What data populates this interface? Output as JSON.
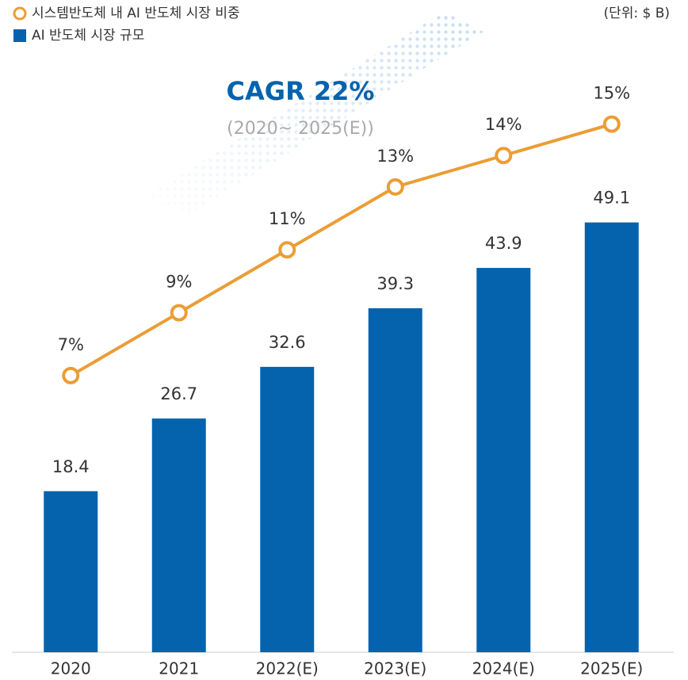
{
  "chart_data": {
    "type": "bar-line",
    "unit_label": "(단위: $ B)",
    "annotation": "CAGR 22%",
    "annotation_sub": "(2020~ 2025(E))",
    "categories": [
      "2020",
      "2021",
      "2022(E)",
      "2023(E)",
      "2024(E)",
      "2025(E)"
    ],
    "series": [
      {
        "name": "시스템반도체 내 AI 반도체 시장 비중",
        "color": "#eb9d35",
        "type": "line",
        "axis": "y2",
        "values": [
          7,
          9,
          11,
          13,
          14,
          15
        ],
        "value_labels": [
          "7%",
          "9%",
          "11%",
          "13%",
          "14%",
          "15%"
        ]
      },
      {
        "name": "AI 반도체 시장 규모",
        "color": "#0563ad",
        "type": "bar",
        "values": [
          18.4,
          26.7,
          32.6,
          39.3,
          43.9,
          49.1
        ]
      }
    ],
    "ylim": [
      0,
      65
    ],
    "y2lim": [
      -1.8,
      16.3
    ]
  }
}
